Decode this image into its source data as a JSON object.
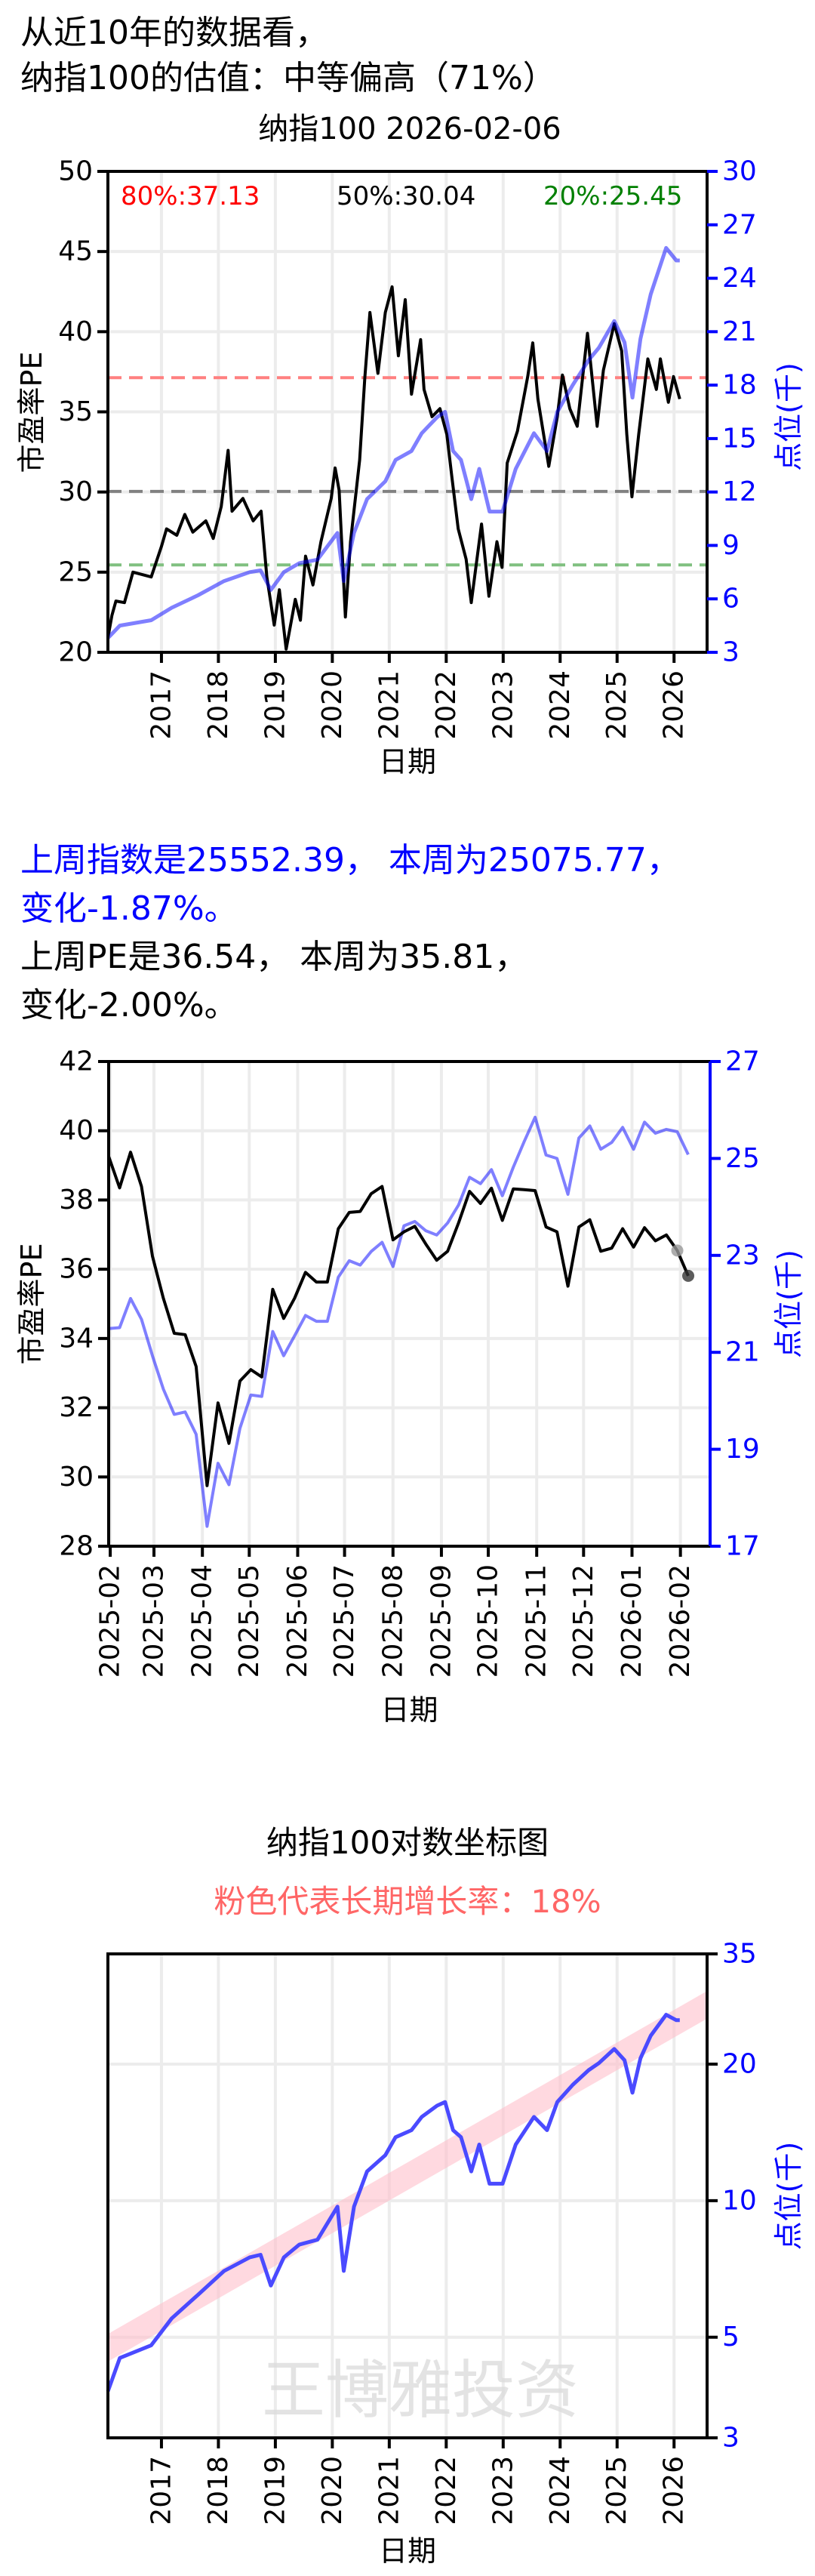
{
  "header": {
    "line1": "从近10年的数据看，",
    "line2": "纳指100的估值：中等偏高（71%）"
  },
  "weekly": {
    "index_line1": "上周指数是25552.39， 本周为25075.77，",
    "index_line2": "变化-1.87%。",
    "pe_line1": "上周PE是36.54， 本周为35.81，",
    "pe_line2": "变化-2.00%。"
  },
  "colors": {
    "pe": "#000000",
    "index": "#0000ff",
    "p80": "#ff0000",
    "p50": "#000000",
    "p20": "#008000",
    "band": "#ffc0cb",
    "subtitle": "#ff6666"
  },
  "chart_data": [
    {
      "type": "line",
      "title": "纳指100 2026-02-06",
      "xlabel": "日期",
      "ylabel": "市盈率PE",
      "ylabel_right": "点位(千)",
      "xlim": [
        2016.06,
        2026.58
      ],
      "ylim": [
        20,
        50
      ],
      "ylim_right": [
        3,
        30
      ],
      "grid": true,
      "xticks": [
        2017,
        2018,
        2019,
        2020,
        2021,
        2022,
        2023,
        2024,
        2025,
        2026
      ],
      "yticks": [
        20,
        25,
        30,
        35,
        40,
        45,
        50
      ],
      "yticks_right": [
        3,
        6,
        9,
        12,
        15,
        18,
        21,
        24,
        27,
        30
      ],
      "reference_lines": [
        {
          "label": "80%:37.13",
          "value": 37.13,
          "color": "#ff0000"
        },
        {
          "label": "50%:30.04",
          "value": 30.04,
          "color": "#000000"
        },
        {
          "label": "20%:25.45",
          "value": 25.45,
          "color": "#008000"
        }
      ],
      "series": [
        {
          "axis": "left",
          "color": "#000000",
          "points": [
            [
              2016.06,
              20.9
            ],
            [
              2016.13,
              22.3
            ],
            [
              2016.2,
              23.2
            ],
            [
              2016.35,
              23.1
            ],
            [
              2016.5,
              25.0
            ],
            [
              2016.82,
              24.7
            ],
            [
              2017.0,
              26.6
            ],
            [
              2017.09,
              27.7
            ],
            [
              2017.27,
              27.3
            ],
            [
              2017.41,
              28.6
            ],
            [
              2017.55,
              27.5
            ],
            [
              2017.78,
              28.2
            ],
            [
              2017.91,
              27.1
            ],
            [
              2018.05,
              29.1
            ],
            [
              2018.17,
              32.6
            ],
            [
              2018.24,
              28.8
            ],
            [
              2018.43,
              29.6
            ],
            [
              2018.61,
              28.2
            ],
            [
              2018.75,
              28.8
            ],
            [
              2018.85,
              24.7
            ],
            [
              2018.98,
              21.7
            ],
            [
              2019.07,
              23.9
            ],
            [
              2019.19,
              20.2
            ],
            [
              2019.35,
              23.3
            ],
            [
              2019.44,
              22.0
            ],
            [
              2019.53,
              26.0
            ],
            [
              2019.66,
              24.2
            ],
            [
              2019.8,
              26.9
            ],
            [
              2019.98,
              29.6
            ],
            [
              2020.05,
              31.5
            ],
            [
              2020.12,
              30.1
            ],
            [
              2020.23,
              22.2
            ],
            [
              2020.32,
              26.9
            ],
            [
              2020.48,
              32.0
            ],
            [
              2020.57,
              37.1
            ],
            [
              2020.66,
              41.2
            ],
            [
              2020.8,
              37.4
            ],
            [
              2020.93,
              41.2
            ],
            [
              2021.05,
              42.8
            ],
            [
              2021.16,
              38.5
            ],
            [
              2021.28,
              42.0
            ],
            [
              2021.39,
              36.1
            ],
            [
              2021.55,
              39.5
            ],
            [
              2021.61,
              36.4
            ],
            [
              2021.75,
              34.7
            ],
            [
              2021.89,
              35.2
            ],
            [
              2022.01,
              33.6
            ],
            [
              2022.1,
              30.9
            ],
            [
              2022.21,
              27.7
            ],
            [
              2022.35,
              25.8
            ],
            [
              2022.44,
              23.1
            ],
            [
              2022.62,
              28.0
            ],
            [
              2022.75,
              23.5
            ],
            [
              2022.89,
              26.9
            ],
            [
              2022.98,
              25.3
            ],
            [
              2023.07,
              31.8
            ],
            [
              2023.25,
              33.8
            ],
            [
              2023.43,
              37.2
            ],
            [
              2023.52,
              39.3
            ],
            [
              2023.61,
              35.8
            ],
            [
              2023.8,
              31.6
            ],
            [
              2023.95,
              34.7
            ],
            [
              2024.04,
              37.3
            ],
            [
              2024.17,
              35.2
            ],
            [
              2024.3,
              34.1
            ],
            [
              2024.48,
              39.9
            ],
            [
              2024.65,
              34.1
            ],
            [
              2024.76,
              37.6
            ],
            [
              2024.95,
              40.5
            ],
            [
              2025.08,
              38.8
            ],
            [
              2025.17,
              33.6
            ],
            [
              2025.26,
              29.7
            ],
            [
              2025.38,
              33.6
            ],
            [
              2025.54,
              38.3
            ],
            [
              2025.69,
              36.4
            ],
            [
              2025.76,
              38.3
            ],
            [
              2025.9,
              35.6
            ],
            [
              2025.99,
              37.2
            ],
            [
              2026.1,
              35.8
            ]
          ]
        },
        {
          "axis": "right",
          "color": "#0000ff",
          "points": [
            [
              2016.06,
              3.8
            ],
            [
              2016.27,
              4.5
            ],
            [
              2016.82,
              4.8
            ],
            [
              2017.18,
              5.5
            ],
            [
              2017.64,
              6.2
            ],
            [
              2018.1,
              7.0
            ],
            [
              2018.55,
              7.5
            ],
            [
              2018.74,
              7.6
            ],
            [
              2018.92,
              6.5
            ],
            [
              2019.15,
              7.5
            ],
            [
              2019.42,
              8.0
            ],
            [
              2019.74,
              8.2
            ],
            [
              2020.09,
              9.7
            ],
            [
              2020.2,
              7.0
            ],
            [
              2020.38,
              9.7
            ],
            [
              2020.61,
              11.6
            ],
            [
              2020.93,
              12.6
            ],
            [
              2021.11,
              13.8
            ],
            [
              2021.39,
              14.3
            ],
            [
              2021.57,
              15.3
            ],
            [
              2021.84,
              16.2
            ],
            [
              2021.98,
              16.5
            ],
            [
              2022.12,
              14.3
            ],
            [
              2022.26,
              13.8
            ],
            [
              2022.44,
              11.6
            ],
            [
              2022.58,
              13.3
            ],
            [
              2022.76,
              10.9
            ],
            [
              2022.99,
              10.9
            ],
            [
              2023.22,
              13.3
            ],
            [
              2023.54,
              15.3
            ],
            [
              2023.77,
              14.3
            ],
            [
              2023.95,
              16.5
            ],
            [
              2024.22,
              18.0
            ],
            [
              2024.5,
              19.4
            ],
            [
              2024.68,
              20.1
            ],
            [
              2024.95,
              21.6
            ],
            [
              2025.13,
              20.4
            ],
            [
              2025.27,
              17.3
            ],
            [
              2025.41,
              20.6
            ],
            [
              2025.59,
              23.1
            ],
            [
              2025.86,
              25.7
            ],
            [
              2026.04,
              25.0
            ],
            [
              2026.1,
              25.0
            ]
          ]
        }
      ]
    },
    {
      "type": "line",
      "xlabel": "日期",
      "ylabel": "市盈率PE",
      "ylabel_right": "点位(千)",
      "xlim": [
        "2025-01-31",
        "2026-02-20"
      ],
      "ylim": [
        28,
        42
      ],
      "ylim_right": [
        17,
        27
      ],
      "grid": true,
      "xticks": [
        "2025-02",
        "2025-03",
        "2025-04",
        "2025-05",
        "2025-06",
        "2025-07",
        "2025-08",
        "2025-09",
        "2025-10",
        "2025-11",
        "2025-12",
        "2026-01",
        "2026-02"
      ],
      "yticks": [
        28,
        30,
        32,
        34,
        36,
        38,
        40,
        42
      ],
      "yticks_right": [
        17,
        19,
        21,
        23,
        25,
        27
      ],
      "week_start": "2025-01-31",
      "pe": [
        39.26,
        38.35,
        39.38,
        38.39,
        36.38,
        35.16,
        34.15,
        34.11,
        33.19,
        29.75,
        32.14,
        30.97,
        32.77,
        33.1,
        32.89,
        35.42,
        34.58,
        35.16,
        35.91,
        35.63,
        35.63,
        37.17,
        37.64,
        37.67,
        38.18,
        38.39,
        36.85,
        37.08,
        37.24,
        36.73,
        36.26,
        36.52,
        37.34,
        38.25,
        37.9,
        38.34,
        37.41,
        38.32,
        38.3,
        38.27,
        37.22,
        37.08,
        35.51,
        37.22,
        37.43,
        36.52,
        36.61,
        37.17,
        36.64,
        37.2,
        36.82,
        36.99,
        36.54,
        35.81
      ],
      "index": [
        21.49,
        21.51,
        22.11,
        21.68,
        20.93,
        20.24,
        19.72,
        19.77,
        19.31,
        17.41,
        18.71,
        18.27,
        19.43,
        20.12,
        20.09,
        21.43,
        20.93,
        21.34,
        21.76,
        21.64,
        21.64,
        22.55,
        22.89,
        22.8,
        23.08,
        23.27,
        22.77,
        23.61,
        23.7,
        23.51,
        23.42,
        23.67,
        24.04,
        24.61,
        24.48,
        24.77,
        24.23,
        24.82,
        25.35,
        25.85,
        25.07,
        25.0,
        24.26,
        25.42,
        25.67,
        25.19,
        25.33,
        25.64,
        25.19,
        25.75,
        25.52,
        25.6,
        25.55,
        25.08
      ],
      "markers": [
        {
          "label": "last_week_pe",
          "value": 36.54,
          "color": "#999999"
        },
        {
          "label": "this_week_pe",
          "value": 35.81,
          "color": "#333333"
        }
      ]
    },
    {
      "type": "line",
      "title": "纳指100对数坐标图",
      "subtitle": "粉色代表长期增长率：18%",
      "xlabel": "日期",
      "ylabel_right": "点位(千)",
      "yscale": "log",
      "xlim": [
        2016.06,
        2026.58
      ],
      "ylim_right": [
        3,
        35
      ],
      "grid": true,
      "xticks": [
        2017,
        2018,
        2019,
        2020,
        2021,
        2022,
        2023,
        2024,
        2025,
        2026
      ],
      "yticks_right": [
        3,
        5,
        10,
        20,
        35
      ],
      "growth_rate": 0.18,
      "watermark": "王博雅投资",
      "series": [
        {
          "color": "#4a4aff",
          "points": [
            [
              2016.06,
              3.8
            ],
            [
              2016.27,
              4.5
            ],
            [
              2016.82,
              4.8
            ],
            [
              2017.18,
              5.5
            ],
            [
              2017.64,
              6.2
            ],
            [
              2018.1,
              7.0
            ],
            [
              2018.55,
              7.5
            ],
            [
              2018.74,
              7.6
            ],
            [
              2018.92,
              6.5
            ],
            [
              2019.15,
              7.5
            ],
            [
              2019.42,
              8.0
            ],
            [
              2019.74,
              8.2
            ],
            [
              2020.09,
              9.7
            ],
            [
              2020.2,
              7.0
            ],
            [
              2020.38,
              9.7
            ],
            [
              2020.61,
              11.6
            ],
            [
              2020.93,
              12.6
            ],
            [
              2021.11,
              13.8
            ],
            [
              2021.39,
              14.3
            ],
            [
              2021.57,
              15.3
            ],
            [
              2021.84,
              16.2
            ],
            [
              2021.98,
              16.5
            ],
            [
              2022.12,
              14.3
            ],
            [
              2022.26,
              13.8
            ],
            [
              2022.44,
              11.6
            ],
            [
              2022.58,
              13.3
            ],
            [
              2022.76,
              10.9
            ],
            [
              2022.99,
              10.9
            ],
            [
              2023.22,
              13.3
            ],
            [
              2023.54,
              15.3
            ],
            [
              2023.77,
              14.3
            ],
            [
              2023.95,
              16.5
            ],
            [
              2024.22,
              18.0
            ],
            [
              2024.5,
              19.4
            ],
            [
              2024.68,
              20.1
            ],
            [
              2024.95,
              21.6
            ],
            [
              2025.13,
              20.4
            ],
            [
              2025.27,
              17.3
            ],
            [
              2025.41,
              20.6
            ],
            [
              2025.59,
              23.1
            ],
            [
              2025.86,
              25.7
            ],
            [
              2026.04,
              25.0
            ],
            [
              2026.1,
              25.0
            ]
          ]
        }
      ]
    }
  ]
}
